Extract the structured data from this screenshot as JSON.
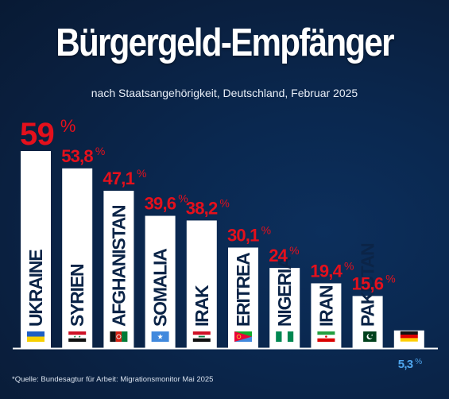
{
  "header": {
    "title": "Bürgergeld-Empfänger",
    "subtitle": "nach Staatsangehörigkeit, Deutschland, Februar 2025"
  },
  "footer": {
    "source": "*Quelle: Bundesagtur für Arbeit: Migrationsmonitor Mai 2025"
  },
  "chart_data": {
    "type": "bar",
    "categories": [
      "UKRAINE",
      "SYRIEN",
      "AFGHANISTAN",
      "SOMALIA",
      "IRAK",
      "ERITREA",
      "NIGERIA",
      "IRAN",
      "PAKISTAN",
      ""
    ],
    "values": [
      59,
      53.8,
      47.1,
      39.6,
      38.2,
      30.1,
      24,
      19.4,
      15.6,
      5.3
    ],
    "value_labels": [
      "59",
      "53,8",
      "47,1",
      "39,6",
      "38,2",
      "30,1",
      "24",
      "19,4",
      "15,6",
      "5,3"
    ],
    "unit": "%",
    "title": "Bürgergeld-Empfänger",
    "subtitle": "nach Staatsangehörigkeit, Deutschland, Februar 2025",
    "xlabel": "",
    "ylabel": "",
    "ylim": [
      0,
      60
    ],
    "grid": false,
    "legend": "none",
    "flags": [
      "ukraine-flag-icon",
      "syria-flag-icon",
      "afghanistan-flag-icon",
      "somalia-flag-icon",
      "iraq-flag-icon",
      "eritrea-flag-icon",
      "nigeria-flag-icon",
      "iran-flag-icon",
      "pakistan-flag-icon",
      "germany-flag-icon"
    ],
    "colors": {
      "bar": "#ffffff",
      "value_label": "#e4101c",
      "highlight_value_label": "#4fa6ee",
      "category_label": "#0b2447",
      "baseline": "#ffffff"
    }
  }
}
